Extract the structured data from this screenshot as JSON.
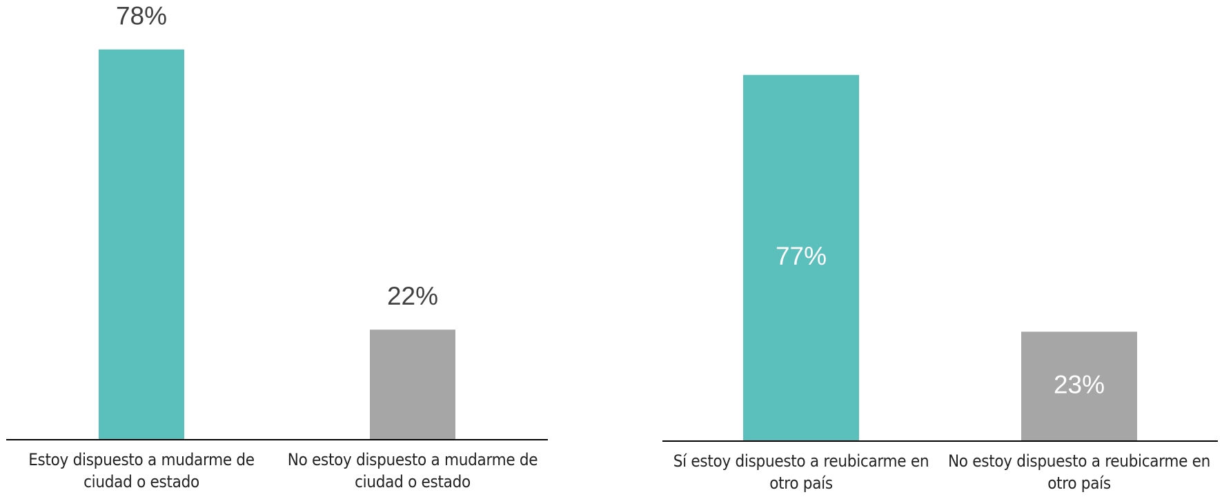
{
  "chart_data": [
    {
      "type": "bar",
      "categories": [
        "Estoy dispuesto a mudarme de ciudad o estado",
        "No estoy dispuesto a mudarme de ciudad o estado"
      ],
      "values": [
        78,
        22
      ],
      "value_labels": [
        "78%",
        "22%"
      ],
      "colors": [
        "#5bbfbc",
        "#a6a6a6"
      ],
      "labels": "outside"
    },
    {
      "type": "bar",
      "categories": [
        "Sí estoy dispuesto a reubicarme en otro país",
        "No estoy dispuesto a reubicarme en otro país"
      ],
      "values": [
        77,
        23
      ],
      "value_labels": [
        "77%",
        "23%"
      ],
      "colors": [
        "#5bbfbc",
        "#a6a6a6"
      ],
      "labels": "inside"
    }
  ]
}
